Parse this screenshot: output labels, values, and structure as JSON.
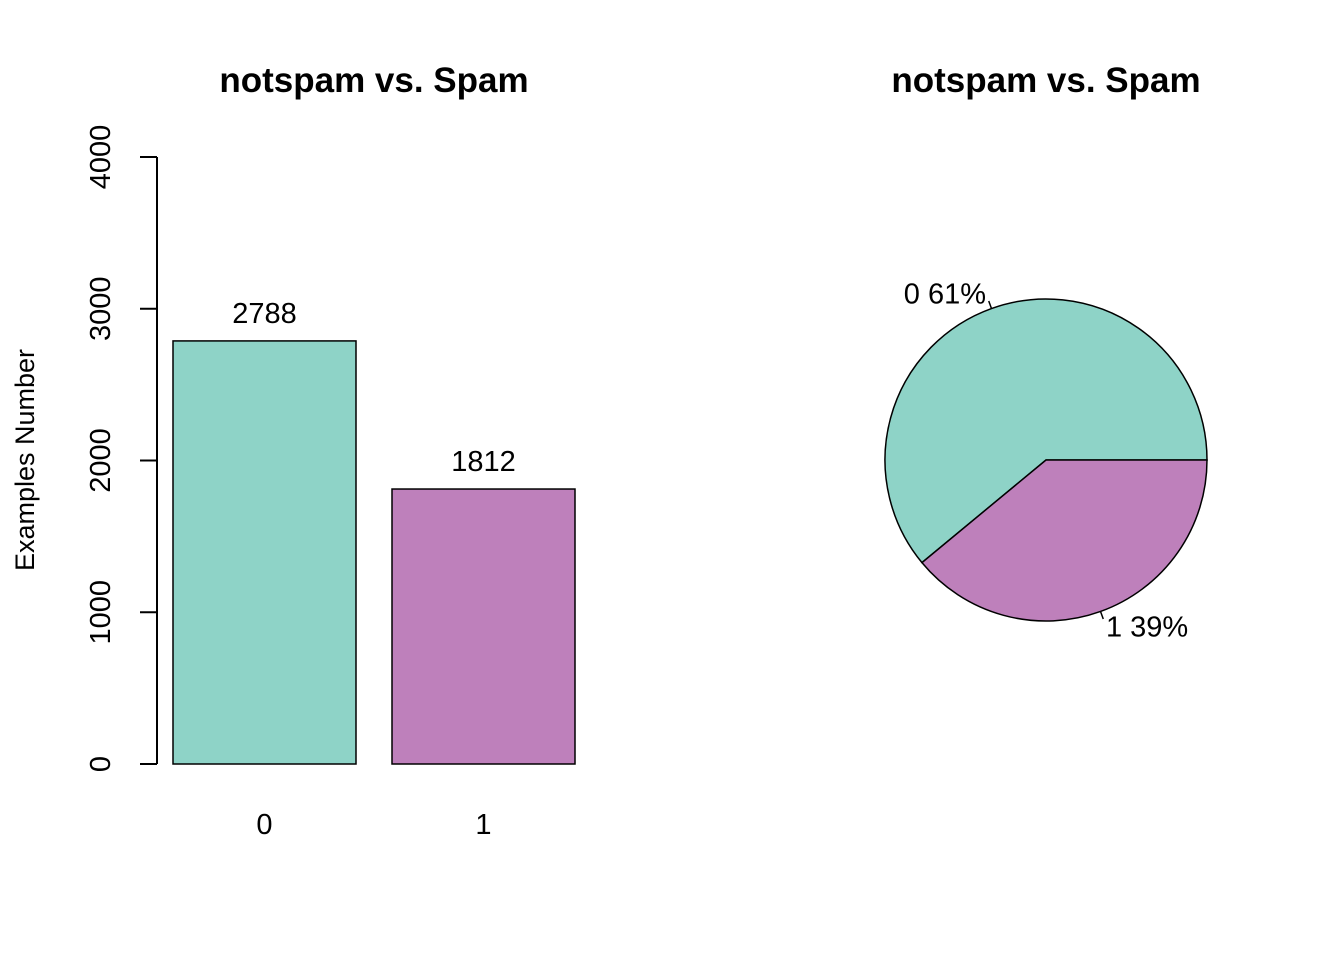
{
  "chart_data": [
    {
      "type": "bar",
      "title": "notspam vs. Spam",
      "ylabel": "Examples Number",
      "xlabel": "",
      "categories": [
        "0",
        "1"
      ],
      "values": [
        2788,
        1812
      ],
      "value_labels": [
        "2788",
        "1812"
      ],
      "colors": [
        "#8ED3C7",
        "#BE80BB"
      ],
      "ylim": [
        0,
        4000
      ],
      "yticks": [
        0,
        1000,
        2000,
        3000,
        4000
      ],
      "ytick_labels": [
        "0",
        "1000",
        "2000",
        "3000",
        "4000"
      ],
      "grid": false,
      "legend": "none"
    },
    {
      "type": "pie",
      "title": "notspam vs. Spam",
      "slices": [
        {
          "label": "0 61%",
          "value": 61,
          "color": "#8ED3C7"
        },
        {
          "label": "1 39%",
          "value": 39,
          "color": "#BE80BB"
        }
      ],
      "legend": "none"
    }
  ]
}
